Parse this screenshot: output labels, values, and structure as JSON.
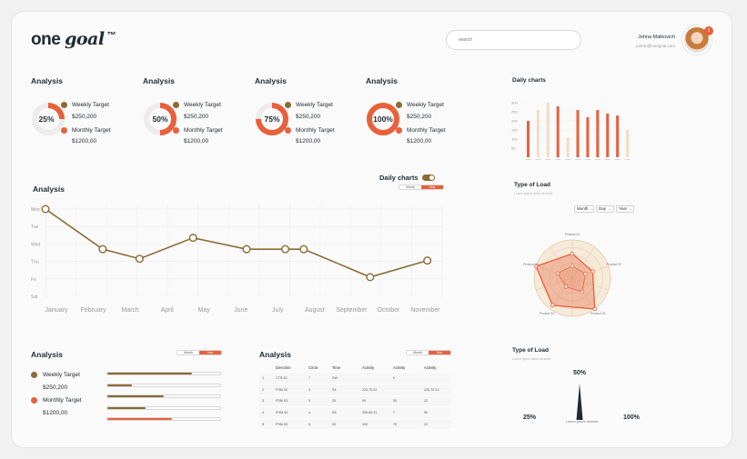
{
  "header": {
    "logo_word": "one",
    "logo_italic": "goal",
    "logo_mark": "™",
    "search_placeholder": "search",
    "user_name": "Johna Malkovich",
    "user_email": "jonnm@onegoal.com",
    "notification_count": "1"
  },
  "colors": {
    "brown": "#8b6a33",
    "orange": "#e8603c",
    "light_orange": "#f3dcc2",
    "track": "#e8e8e8"
  },
  "donuts": [
    {
      "title": "Analysis",
      "percent_label": "25%",
      "percent": 25,
      "weekly_label": "Weekly Target",
      "weekly_value": "$250,200",
      "monthly_label": "Monthly Target",
      "monthly_value": "$1200,00"
    },
    {
      "title": "Analysis",
      "percent_label": "50%",
      "percent": 50,
      "weekly_label": "Weekly Target",
      "weekly_value": "$250,200",
      "monthly_label": "Monthly Target",
      "monthly_value": "$1200,00"
    },
    {
      "title": "Analysis",
      "percent_label": "75%",
      "percent": 75,
      "weekly_label": "Weekly Target",
      "weekly_value": "$250,200",
      "monthly_label": "Monthly Target",
      "monthly_value": "$1200,00"
    },
    {
      "title": "Analysis",
      "percent_label": "100%",
      "percent": 100,
      "weekly_label": "Weekly Target",
      "weekly_value": "$250,200",
      "monthly_label": "Monthly Target",
      "monthly_value": "$1200,00"
    }
  ],
  "daily_bar": {
    "title": "Daily charts",
    "y_ticks": [
      "300",
      "250",
      "200",
      "150",
      "100",
      "50"
    ]
  },
  "line_section": {
    "title": "Analysis",
    "toggle_label": "Daily charts",
    "seg_month": "Month",
    "seg_year": "Year"
  },
  "radar": {
    "title": "Type of Load",
    "caption": "Lorem ipsum dolor sit amet",
    "selects": [
      "Month",
      "Day",
      "Year"
    ],
    "axis_labels": [
      "Product 01",
      "Product 02",
      "Product 03",
      "Product 04",
      "Product 05"
    ]
  },
  "targets": {
    "title": "Analysis",
    "seg_month": "Month",
    "seg_year": "Year",
    "weekly_label": "Weekly Target",
    "weekly_value": "$250,200",
    "monthly_label": "Monthly Target",
    "monthly_value": "$1200,00",
    "progress": [
      0.75,
      0.22,
      0.5,
      0.34,
      0.57
    ]
  },
  "table": {
    "title": "Analysis",
    "seg_month": "Month",
    "seg_year": "Year",
    "headers": [
      "",
      "Direction",
      "Circle",
      "Time",
      "Activity",
      "Activity",
      "Activity"
    ],
    "rows": [
      [
        "1",
        "CTR-01",
        "7",
        "SW",
        "",
        "0",
        ""
      ],
      [
        "2",
        "PSM 02",
        "4",
        "S4",
        "225.70 22",
        "",
        "225.70 22"
      ],
      [
        "3",
        "PSM 03",
        "5",
        "25",
        "90",
        "55",
        "22"
      ],
      [
        "4",
        "PSM 04",
        "4",
        "S5",
        "205.85 22",
        "7",
        "90"
      ],
      [
        "5",
        "PSM 05",
        "5",
        "33",
        "100",
        "75",
        "22"
      ]
    ]
  },
  "gauge": {
    "title": "Type of Load",
    "caption": "Lorem ipsum dolor sit amet",
    "top_label": "50%",
    "left_label": "25%",
    "right_label": "100%",
    "needle_caption": "Lorem ipsum dolorist"
  },
  "chart_data": [
    {
      "type": "bar",
      "title": "Daily charts",
      "ylim": [
        0,
        300
      ],
      "y_ticks": [
        50,
        100,
        150,
        200,
        250,
        300
      ],
      "series": [
        {
          "values": [
            200,
            0,
            0,
            280,
            0,
            260,
            220,
            260,
            240,
            230,
            0
          ]
        },
        {
          "values": [
            0,
            260,
            300,
            0,
            110,
            0,
            0,
            0,
            0,
            0,
            150
          ]
        }
      ],
      "colors": [
        "#e8603c",
        "#f3dcc2"
      ]
    },
    {
      "type": "line",
      "title": "Analysis",
      "categories": [
        "January",
        "February",
        "March",
        "April",
        "May",
        "June",
        "July",
        "August",
        "September",
        "October",
        "November"
      ],
      "y_categories": [
        "Mon",
        "Tue",
        "Wed",
        "Thu",
        "Fri",
        "Sat"
      ],
      "points": [
        {
          "x": 0,
          "y": 0
        },
        {
          "x": 1.55,
          "y": 2.3
        },
        {
          "x": 2.55,
          "y": 2.85
        },
        {
          "x": 4.0,
          "y": 1.65
        },
        {
          "x": 5.45,
          "y": 2.3
        },
        {
          "x": 6.5,
          "y": 2.3
        },
        {
          "x": 7.0,
          "y": 2.3
        },
        {
          "x": 8.8,
          "y": 3.9
        },
        {
          "x": 10.35,
          "y": 2.95
        }
      ],
      "grid": true
    },
    {
      "type": "radar",
      "title": "Type of Load",
      "axes": [
        "Product 01",
        "Product 02",
        "Product 03",
        "Product 04",
        "Product 05"
      ],
      "rmax": 5,
      "series": [
        {
          "values": [
            3.2,
            2.8,
            5,
            4.4,
            5
          ]
        },
        {
          "values": [
            1.6,
            1.8,
            2.2,
            1.4,
            2.0
          ]
        }
      ]
    }
  ]
}
